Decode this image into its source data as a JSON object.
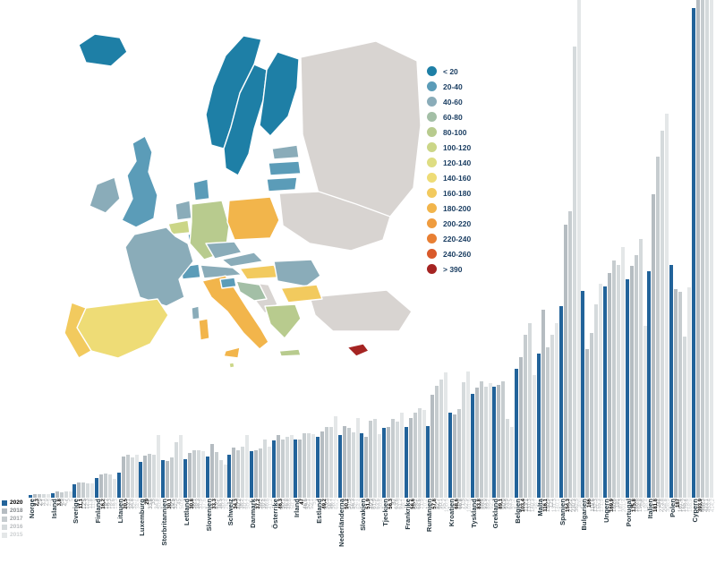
{
  "map_legend": {
    "items": [
      {
        "label": "< 20",
        "color": "#1e7fa6"
      },
      {
        "label": "20-40",
        "color": "#5b9cb8"
      },
      {
        "label": "40-60",
        "color": "#8aacb9"
      },
      {
        "label": "60-80",
        "color": "#a3bfa6"
      },
      {
        "label": "80-100",
        "color": "#b8cb8e"
      },
      {
        "label": "100-120",
        "color": "#cbd687"
      },
      {
        "label": "120-140",
        "color": "#dedd82"
      },
      {
        "label": "140-160",
        "color": "#eedc76"
      },
      {
        "label": "160-180",
        "color": "#f2ca5e"
      },
      {
        "label": "180-200",
        "color": "#f2b54b"
      },
      {
        "label": "200-220",
        "color": "#ef9c3f"
      },
      {
        "label": "220-240",
        "color": "#e87f33"
      },
      {
        "label": "240-260",
        "color": "#d95a2b"
      },
      {
        "label": "> 390",
        "color": "#a52422"
      }
    ]
  },
  "map": {
    "no_data_color": "#d8d4d1",
    "colors": {
      "iceland": "#1e7fa6",
      "norway": "#1e7fa6",
      "sweden": "#1e7fa6",
      "finland": "#1e7fa6",
      "estonia": "#8aacb9",
      "latvia": "#5b9cb8",
      "lithuania": "#5b9cb8",
      "uk": "#5b9cb8",
      "ireland": "#8aacb9",
      "denmark": "#5b9cb8",
      "netherlands": "#8aacb9",
      "belgium": "#cbd687",
      "luxembourg": "#5b9cb8",
      "germany": "#b8cb8e",
      "poland": "#f2b54b",
      "czechia": "#8aacb9",
      "slovakia": "#8aacb9",
      "austria": "#8aacb9",
      "switzerland": "#5b9cb8",
      "france": "#8aacb9",
      "spain": "#eedc76",
      "portugal": "#f2ca5e",
      "italy": "#f2b54b",
      "slovenia": "#5b9cb8",
      "croatia": "#a3bfa6",
      "hungary": "#f2ca5e",
      "romania": "#8aacb9",
      "bulgaria": "#f2ca5e",
      "greece": "#b8cb8e",
      "malta": "#cbd687",
      "cyprus": "#a52422"
    }
  },
  "chart_data": {
    "type": "bar",
    "categories": [
      "Norge",
      "Island",
      "Sverige",
      "Finland",
      "Litauen",
      "Luxemburg",
      "Storbritannien",
      "Lettland",
      "Slovenien",
      "Schweiz",
      "Danmark",
      "Österrike",
      "Irland",
      "Estland",
      "Nederländerna",
      "Slovakien",
      "Tjeckien",
      "Frankrike",
      "Rumänien",
      "Kroatien",
      "Tyskland",
      "Grekland",
      "Belgien",
      "Malta",
      "Spanien",
      "Bulgarien",
      "Ungern",
      "Portugal",
      "Italien",
      "Polen",
      "Cypern"
    ],
    "ylim": [
      0,
      470
    ],
    "grid": false,
    "legend_position": "bottom-left",
    "series": [
      {
        "name": "2020",
        "color": "#22639a",
        "label_color": "#000000",
        "values": [
          "2,3",
          "3,8",
          "11,1",
          "16,2",
          "20,5",
          "29",
          "30,1",
          "30,8",
          "33,3",
          "34,3",
          "37,2",
          "46,3",
          "47",
          "49,2",
          "50,2",
          "51,9",
          "56,3",
          "56,6",
          "57,8",
          "68,6",
          "83,8",
          "89,1",
          "103,4",
          "116,1",
          "154,3",
          "166",
          "169,9",
          "175,8",
          "181,8",
          "187",
          "393,9"
        ]
      },
      {
        "name": "2018",
        "color": "#b5bcc1",
        "label_color": "#85898c",
        "values": [
          "2,9",
          "4,9",
          "12,5",
          "18,7",
          "33,1",
          "33,6",
          "29,5",
          "36,1",
          "43,2",
          "40,2",
          "38,2",
          "50,1",
          "46,6",
          "53,3",
          "57,5",
          "49,3",
          "57",
          "64,2",
          "82,7",
          "66,8",
          "88,4",
          "90,9",
          "113,1",
          "150,9",
          "219,2",
          "119,6",
          "180,6",
          "186,6",
          "244",
          "167,4",
          "466,3"
        ]
      },
      {
        "name": "2017",
        "color": "#c6cccf",
        "label_color": "#9ea2a5",
        "values": [
          "3,1",
          "4,7",
          "12,3",
          "19,3",
          "34,8",
          "35",
          "32,5",
          "38,3",
          "36,5",
          "38,2",
          "39,4",
          "46,8",
          "52,1",
          "56,7",
          "56,3",
          "61,9",
          "63,6",
          "68,6",
          "90,1",
          "71,5",
          "93,9",
          "93,9",
          "131,3",
          "121",
          "230,3",
          "132,3",
          "191",
          "194,8",
          "273,8",
          "165,2",
          "423,1"
        ]
      },
      {
        "name": "2016",
        "color": "#d5dadc",
        "label_color": "#b7babd",
        "values": [
          "2,9",
          "5",
          "11,8",
          "18,6",
          "32,7",
          "34,8",
          "45",
          "37,9",
          "30,3",
          "40,7",
          "46,8",
          "48,8",
          "52,1",
          "56,7",
          "52,7",
          "63,6",
          "61,2",
          "71,9",
          "95,2",
          "92,9",
          "89,2",
          "63,5",
          "140,3",
          "131,3",
          "362,5",
          "155,3",
          "187,3",
          "208",
          "294,8",
          "129,4",
          "453,4"
        ]
      },
      {
        "name": "2015",
        "color": "#e4e7e8",
        "label_color": "#cdd0d2",
        "values": [
          "2,9",
          "5",
          "11,8",
          "15,3",
          "34,6",
          "50,6",
          "50,6",
          "37,6",
          "26,4",
          "50,2",
          "41,2",
          "50,7",
          "51",
          "65,2",
          "64,4",
          "50,8",
          "68,1",
          "70,2",
          "100,5",
          "101,6",
          "92,3",
          "57,2",
          "98,7",
          "140,1",
          "400",
          "171,9",
          "201,4",
          "138,4",
          "308,9",
          "168,9",
          "414,2"
        ]
      }
    ]
  }
}
